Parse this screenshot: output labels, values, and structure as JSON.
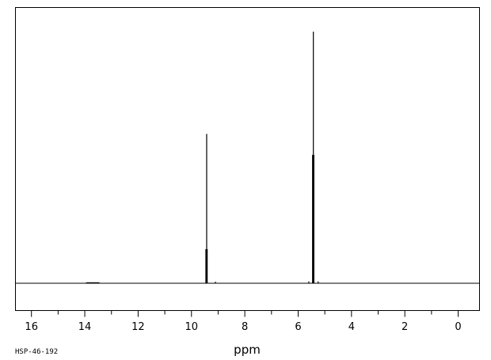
{
  "chart_data": {
    "type": "line",
    "title": "",
    "xlabel": "ppm",
    "ylabel": "",
    "xlim": [
      16.6,
      -0.8
    ],
    "x_reversed": true,
    "ylim": [
      -0.1,
      1.0
    ],
    "grid": false,
    "x_ticks_major": [
      16,
      14,
      12,
      10,
      8,
      6,
      4,
      2,
      0
    ],
    "x_tick_labels": [
      "16",
      "14",
      "12",
      "10",
      "8",
      "6",
      "4",
      "2",
      "0"
    ],
    "x_ticks_minor": [
      15,
      13,
      11,
      9,
      7,
      5,
      3,
      1
    ],
    "peaks": [
      {
        "ppm": 13.7,
        "intensity": 0.004,
        "width": 0.5
      },
      {
        "ppm": 9.46,
        "intensity": 0.13,
        "width": 0.02
      },
      {
        "ppm": 9.43,
        "intensity": 0.57,
        "width": 0.02
      },
      {
        "ppm": 9.41,
        "intensity": 0.13,
        "width": 0.02
      },
      {
        "ppm": 9.1,
        "intensity": 0.006,
        "width": 0.02
      },
      {
        "ppm": 5.6,
        "intensity": 0.007,
        "width": 0.02
      },
      {
        "ppm": 5.46,
        "intensity": 0.49,
        "width": 0.02
      },
      {
        "ppm": 5.43,
        "intensity": 0.96,
        "width": 0.02
      },
      {
        "ppm": 5.41,
        "intensity": 0.49,
        "width": 0.02
      },
      {
        "ppm": 5.25,
        "intensity": 0.007,
        "width": 0.02
      }
    ]
  },
  "footer": {
    "sample_id": "HSP-46-192"
  }
}
